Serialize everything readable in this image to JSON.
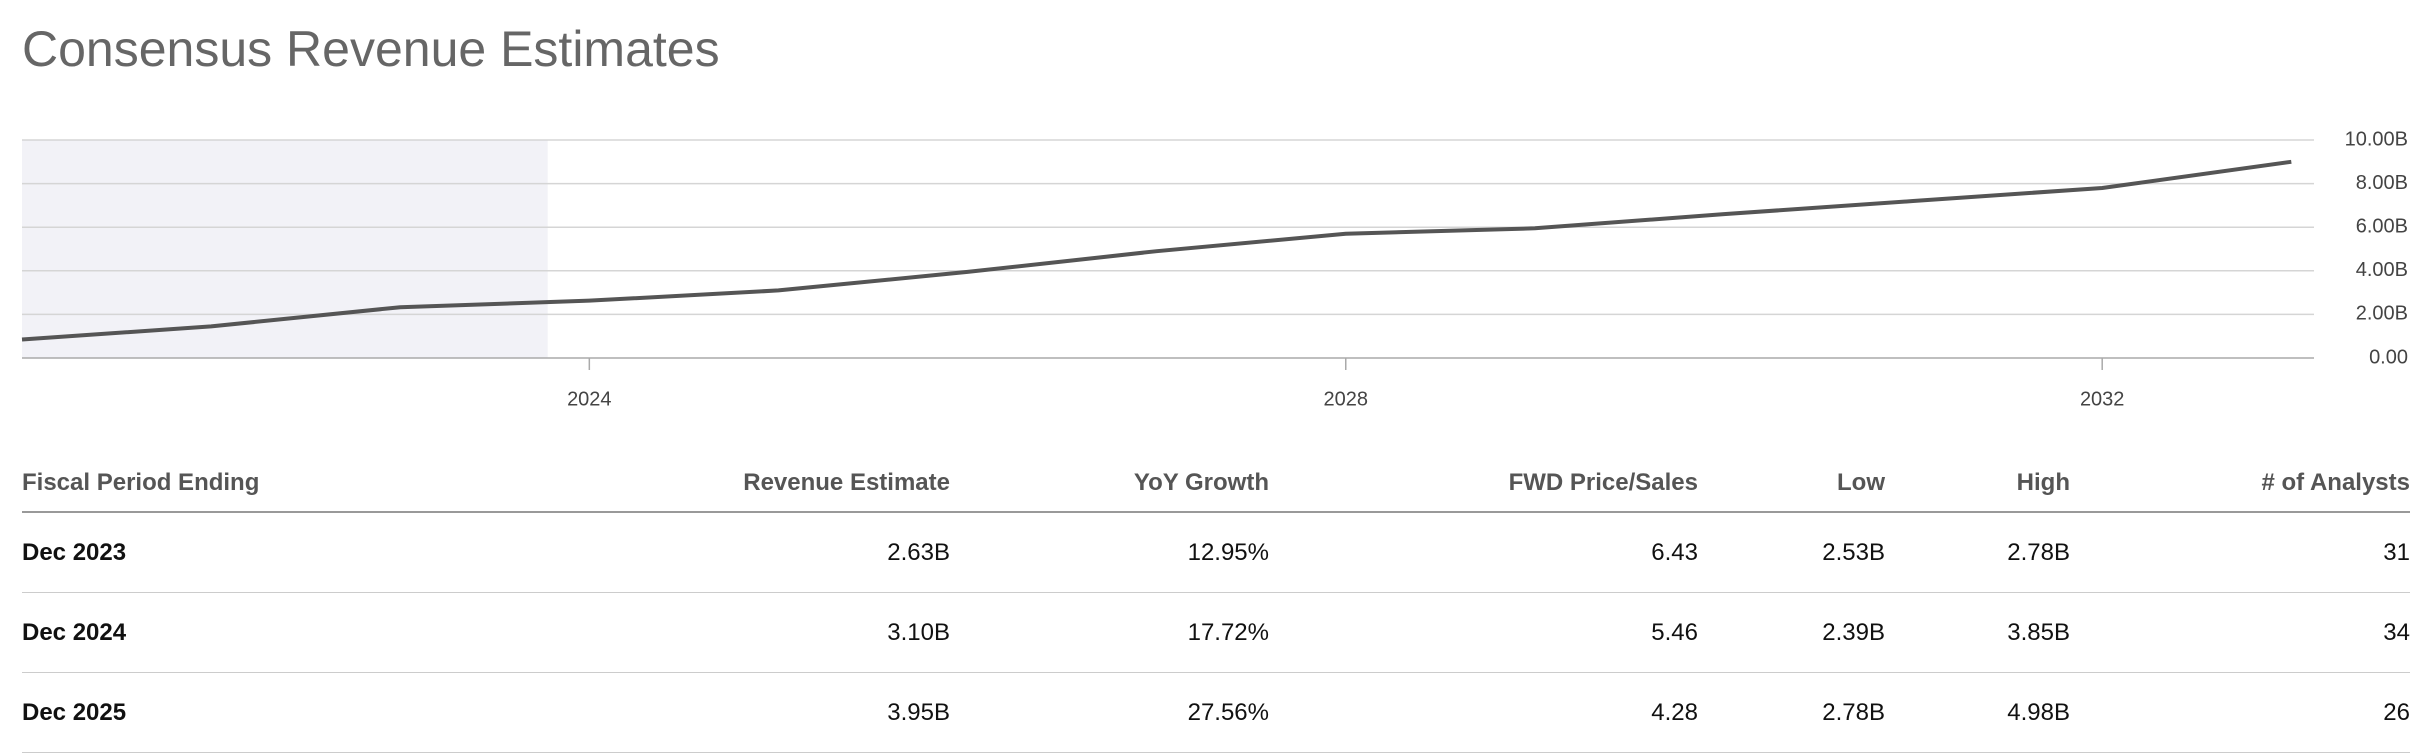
{
  "header": {
    "title": "Consensus Revenue Estimates"
  },
  "chart_data": {
    "type": "line",
    "x": [
      2021,
      2022,
      2023,
      2024,
      2025,
      2026,
      2027,
      2028,
      2029,
      2030,
      2031,
      2032,
      2033
    ],
    "series": [
      {
        "name": "Revenue",
        "color": "#555555",
        "values": [
          0.85,
          1.45,
          2.33,
          2.63,
          3.1,
          3.95,
          4.9,
          5.7,
          5.95,
          6.6,
          7.2,
          7.8,
          9.0
        ]
      }
    ],
    "xlim": [
      2021,
      2033.12
    ],
    "xticks": [
      2024,
      2028,
      2032
    ],
    "ylim": [
      0,
      10
    ],
    "yticks": [
      {
        "value": 0,
        "label": "0.00"
      },
      {
        "value": 2,
        "label": "2.00B"
      },
      {
        "value": 4,
        "label": "4.00B"
      },
      {
        "value": 6,
        "label": "6.00B"
      },
      {
        "value": 8,
        "label": "8.00B"
      },
      {
        "value": 10,
        "label": "10.00B"
      }
    ],
    "shaded_range": [
      2021,
      2023.78
    ],
    "grid": true
  },
  "table": {
    "columns": [
      "Fiscal Period Ending",
      "Revenue Estimate",
      "YoY Growth",
      "FWD Price/Sales",
      "Low",
      "High",
      "# of Analysts"
    ],
    "rows": [
      [
        "Dec 2023",
        "2.63B",
        "12.95%",
        "6.43",
        "2.53B",
        "2.78B",
        "31"
      ],
      [
        "Dec 2024",
        "3.10B",
        "17.72%",
        "5.46",
        "2.39B",
        "3.85B",
        "34"
      ],
      [
        "Dec 2025",
        "3.95B",
        "27.56%",
        "4.28",
        "2.78B",
        "4.98B",
        "26"
      ]
    ]
  }
}
